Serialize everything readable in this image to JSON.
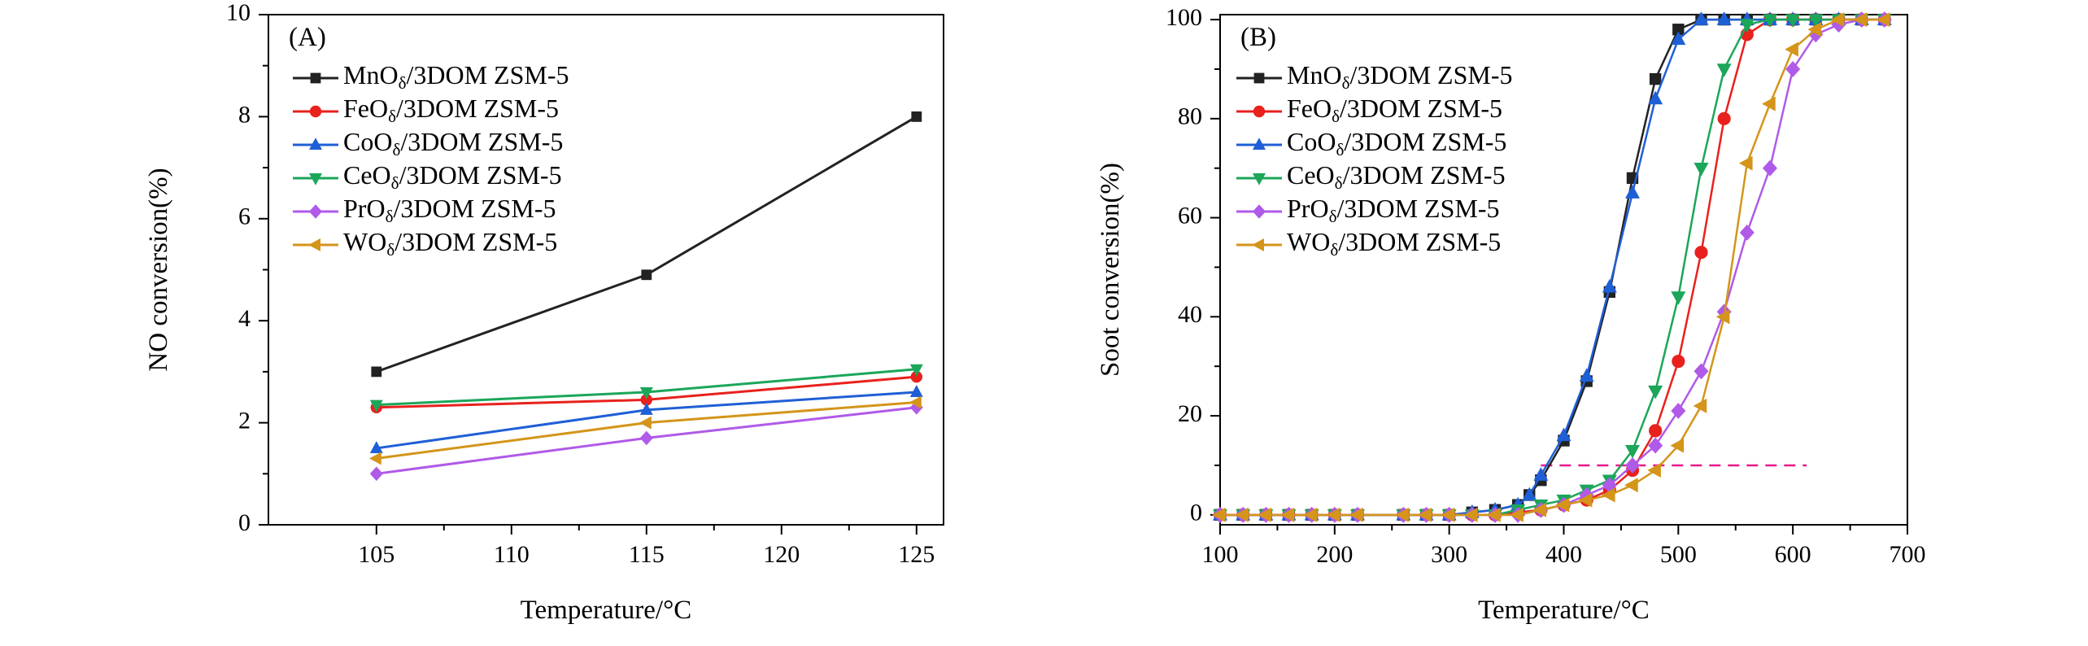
{
  "chart_data": [
    {
      "type": "line",
      "panel_label": "(A)",
      "xlabel": "Temperature/°C",
      "ylabel": "NO conversion(%)",
      "xlim": [
        101,
        126
      ],
      "ylim": [
        0,
        10
      ],
      "xticks": [
        105,
        110,
        115,
        120,
        125
      ],
      "yticks": [
        0,
        2,
        4,
        6,
        8,
        10
      ],
      "legend_position": "top-left",
      "series": [
        {
          "name": "MnOδ/3DOM ZSM-5",
          "color": "#222222",
          "marker": "square",
          "x": [
            105,
            115,
            125
          ],
          "values": [
            3.0,
            4.9,
            8.0
          ]
        },
        {
          "name": "FeOδ/3DOM ZSM-5",
          "color": "#e8211d",
          "marker": "circle",
          "x": [
            105,
            115,
            125
          ],
          "values": [
            2.3,
            2.45,
            2.9
          ]
        },
        {
          "name": "CoOδ/3DOM ZSM-5",
          "color": "#1f5fd6",
          "marker": "triangle-up",
          "x": [
            105,
            115,
            125
          ],
          "values": [
            1.5,
            2.25,
            2.6
          ]
        },
        {
          "name": "CeOδ/3DOM ZSM-5",
          "color": "#1ba65a",
          "marker": "triangle-down",
          "x": [
            105,
            115,
            125
          ],
          "values": [
            2.35,
            2.6,
            3.05
          ]
        },
        {
          "name": "PrOδ/3DOM ZSM-5",
          "color": "#b05ae8",
          "marker": "diamond",
          "x": [
            105,
            115,
            125
          ],
          "values": [
            1.0,
            1.7,
            2.3
          ]
        },
        {
          "name": "WOδ/3DOM ZSM-5",
          "color": "#d4951a",
          "marker": "triangle-left",
          "x": [
            105,
            115,
            125
          ],
          "values": [
            1.3,
            2.0,
            2.4
          ]
        }
      ]
    },
    {
      "type": "line",
      "panel_label": "(B)",
      "xlabel": "Temperature/°C",
      "ylabel": "Soot conversion(%)",
      "xlim": [
        100,
        700
      ],
      "ylim": [
        -2,
        101
      ],
      "xticks": [
        100,
        200,
        300,
        400,
        500,
        600,
        700
      ],
      "yticks": [
        0,
        20,
        40,
        60,
        80,
        100
      ],
      "legend_position": "top-left",
      "reference_line": {
        "y": 10,
        "x_range": [
          380,
          612
        ],
        "color": "#e8198a",
        "style": "dashed"
      },
      "series": [
        {
          "name": "MnOδ/3DOM ZSM-5",
          "color": "#222222",
          "marker": "square",
          "x": [
            100,
            120,
            140,
            160,
            180,
            200,
            220,
            260,
            280,
            300,
            320,
            340,
            360,
            370,
            380,
            400,
            420,
            440,
            460,
            480,
            500,
            520,
            540,
            560,
            580,
            600,
            620,
            640,
            660,
            680
          ],
          "values": [
            0,
            0,
            0,
            0,
            0,
            0,
            0,
            0,
            0,
            0,
            0.5,
            1,
            2,
            4,
            7,
            15,
            27,
            45,
            68,
            88,
            98,
            100,
            100,
            100,
            100,
            100,
            100,
            100,
            100,
            100
          ]
        },
        {
          "name": "FeOδ/3DOM ZSM-5",
          "color": "#e8211d",
          "marker": "circle",
          "x": [
            100,
            120,
            140,
            160,
            180,
            200,
            220,
            260,
            280,
            300,
            320,
            340,
            360,
            380,
            400,
            420,
            440,
            460,
            480,
            500,
            520,
            540,
            560,
            580,
            600,
            620,
            640,
            660,
            680
          ],
          "values": [
            0,
            0,
            0,
            0,
            0,
            0,
            0,
            0,
            0,
            0,
            0,
            0,
            0.5,
            1,
            2,
            3,
            5,
            9,
            17,
            31,
            53,
            80,
            97,
            100,
            100,
            100,
            100,
            100,
            100
          ]
        },
        {
          "name": "CoOδ/3DOM ZSM-5",
          "color": "#1f5fd6",
          "marker": "triangle-up",
          "x": [
            100,
            120,
            140,
            160,
            180,
            200,
            220,
            260,
            280,
            300,
            320,
            340,
            360,
            370,
            380,
            400,
            420,
            440,
            460,
            480,
            500,
            520,
            540,
            560,
            580,
            600,
            620,
            640,
            660,
            680
          ],
          "values": [
            0,
            0,
            0,
            0,
            0,
            0,
            0,
            0,
            0,
            0,
            0.5,
            1,
            2,
            4,
            8,
            16,
            28,
            46,
            65,
            84,
            96,
            100,
            100,
            100,
            100,
            100,
            100,
            100,
            100,
            100
          ]
        },
        {
          "name": "CeOδ/3DOM ZSM-5",
          "color": "#1ba65a",
          "marker": "triangle-down",
          "x": [
            100,
            120,
            140,
            160,
            180,
            200,
            220,
            260,
            280,
            300,
            320,
            340,
            360,
            380,
            400,
            420,
            440,
            460,
            480,
            500,
            520,
            540,
            560,
            580,
            600,
            620,
            640,
            660,
            680
          ],
          "values": [
            0,
            0,
            0,
            0,
            0,
            0,
            0,
            0,
            0,
            0,
            0,
            0,
            1,
            2,
            3,
            5,
            7,
            13,
            25,
            44,
            70,
            90,
            99,
            100,
            100,
            100,
            100,
            100,
            100
          ]
        },
        {
          "name": "PrOδ/3DOM ZSM-5",
          "color": "#b05ae8",
          "marker": "diamond",
          "x": [
            100,
            120,
            140,
            160,
            180,
            200,
            220,
            260,
            280,
            300,
            320,
            340,
            360,
            380,
            400,
            420,
            440,
            460,
            480,
            500,
            520,
            540,
            560,
            580,
            600,
            620,
            640,
            660,
            680
          ],
          "values": [
            0,
            0,
            0,
            0,
            0,
            0,
            0,
            0,
            0,
            0,
            0,
            0,
            0,
            1,
            2,
            4,
            6,
            10,
            14,
            21,
            29,
            41,
            57,
            70,
            90,
            97,
            99,
            100,
            100
          ]
        },
        {
          "name": "WOδ/3DOM ZSM-5",
          "color": "#d4951a",
          "marker": "triangle-left",
          "x": [
            100,
            120,
            140,
            160,
            180,
            200,
            220,
            260,
            280,
            300,
            320,
            340,
            360,
            380,
            400,
            420,
            440,
            460,
            480,
            500,
            520,
            540,
            560,
            580,
            600,
            620,
            640,
            660,
            680
          ],
          "values": [
            0,
            0,
            0,
            0,
            0,
            0,
            0,
            0,
            0,
            0,
            0,
            0,
            0,
            1,
            2,
            3,
            4,
            6,
            9,
            14,
            22,
            40,
            71,
            83,
            94,
            98,
            100,
            100,
            100
          ]
        }
      ]
    }
  ]
}
